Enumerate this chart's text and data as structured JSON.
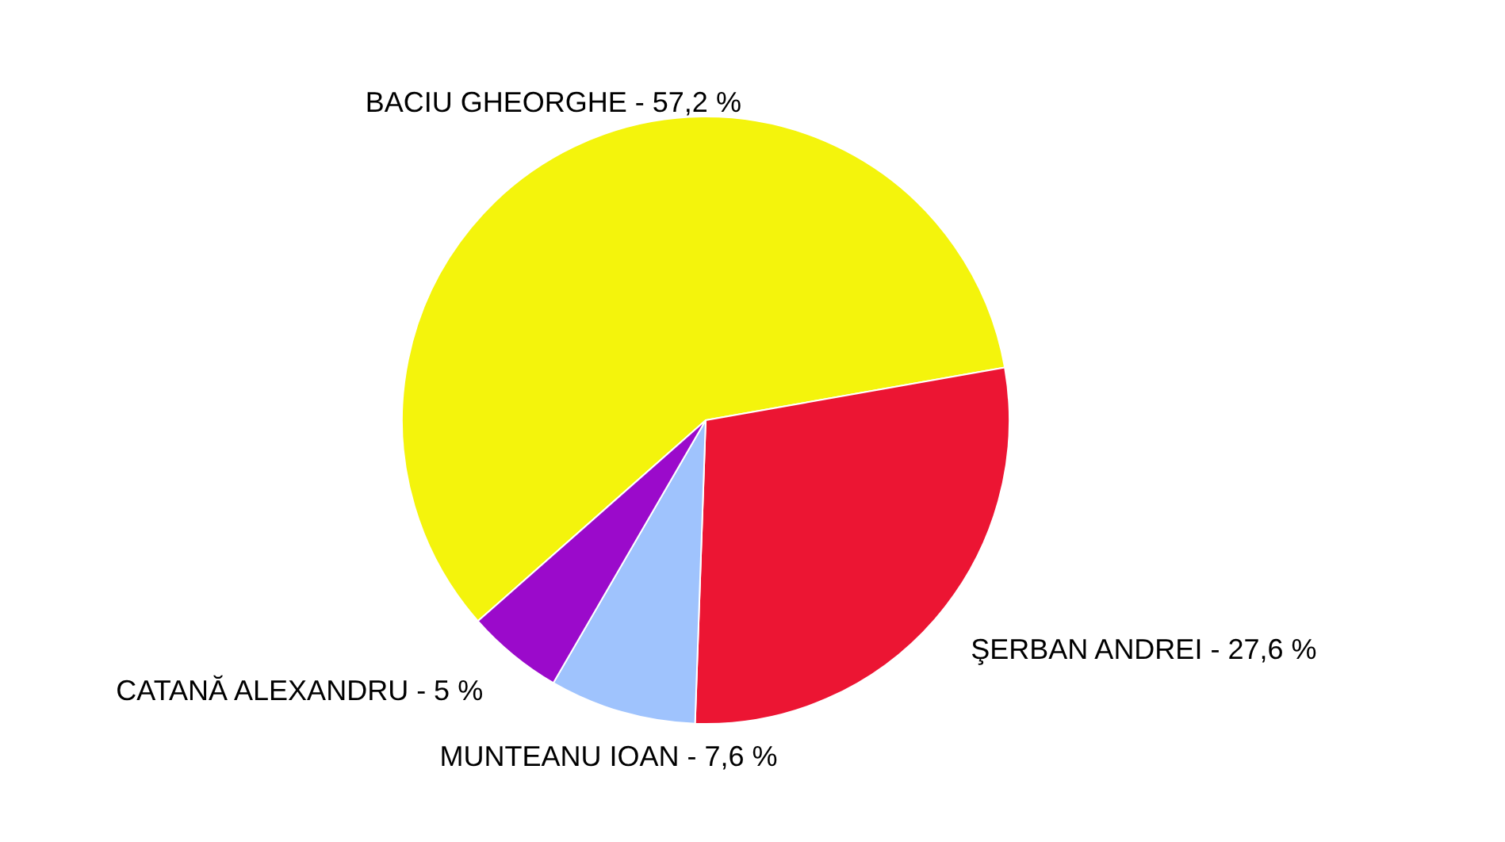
{
  "chart_data": {
    "type": "pie",
    "categories": [
      "BACIU GHEORGHE",
      "ŞERBAN ANDREI",
      "MUNTEANU IOAN",
      "CATANĂ ALEXANDRU"
    ],
    "values": [
      57.2,
      27.6,
      7.6,
      5
    ],
    "value_labels": [
      "57,2 %",
      "27,6 %",
      "7,6 %",
      "5 %"
    ],
    "colors": [
      "#f4f40c",
      "#ec1533",
      "#9fc3fd",
      "#9b0acb"
    ],
    "legend": false
  }
}
